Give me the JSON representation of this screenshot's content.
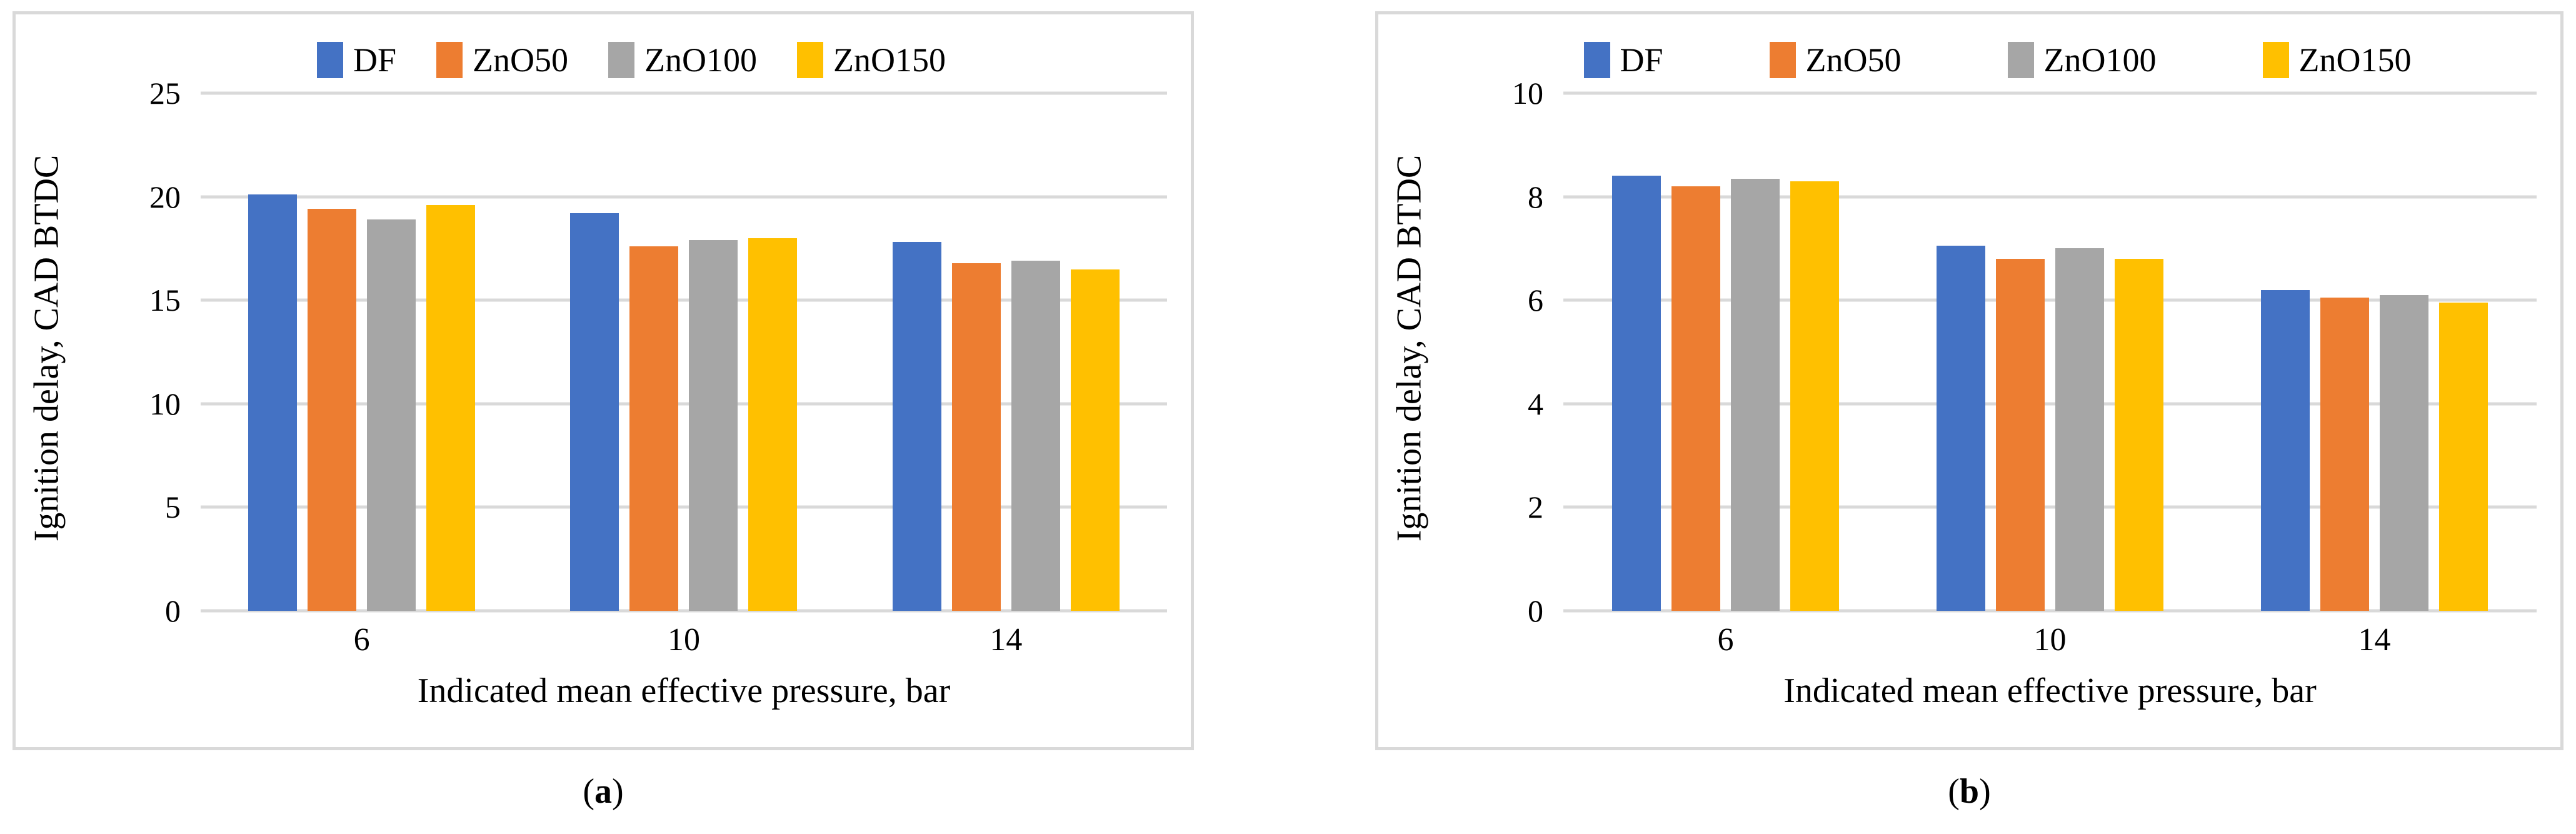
{
  "figure": {
    "captions": [
      {
        "pre": "(",
        "letter": "a",
        "post": ")"
      },
      {
        "pre": "(",
        "letter": "b",
        "post": ")"
      }
    ]
  },
  "colors": {
    "grid": "#d9d9d9",
    "panel_border": "#d9d9d9",
    "text": "#000000",
    "df": "#4472C4",
    "zno50": "#ED7D31",
    "zno100": "#A6A6A6",
    "zno150": "#FFC000"
  },
  "chart_data": [
    {
      "type": "bar",
      "panel": "a",
      "title": "",
      "ylabel": "Ignition delay, CAD BTDC",
      "xlabel": "Indicated mean effective pressure, bar",
      "categories": [
        "6",
        "10",
        "14"
      ],
      "yticks": [
        0,
        5,
        10,
        15,
        20,
        25
      ],
      "ylim": [
        0,
        25
      ],
      "grid": "horizontal-only",
      "legend_position": "top",
      "series": [
        {
          "name": "DF",
          "color": "#4472C4",
          "values": [
            20.1,
            19.2,
            17.8
          ]
        },
        {
          "name": "ZnO50",
          "color": "#ED7D31",
          "values": [
            19.4,
            17.6,
            16.8
          ]
        },
        {
          "name": "ZnO100",
          "color": "#A6A6A6",
          "values": [
            18.9,
            17.9,
            16.9
          ]
        },
        {
          "name": "ZnO150",
          "color": "#FFC000",
          "values": [
            19.6,
            18.0,
            16.5
          ]
        }
      ]
    },
    {
      "type": "bar",
      "panel": "b",
      "title": "",
      "ylabel": "Ignition delay, CAD BTDC",
      "xlabel": "Indicated mean effective pressure, bar",
      "categories": [
        "6",
        "10",
        "14"
      ],
      "yticks": [
        0,
        2,
        4,
        6,
        8,
        10
      ],
      "ylim": [
        0,
        10
      ],
      "grid": "horizontal-only",
      "legend_position": "top",
      "series": [
        {
          "name": "DF",
          "color": "#4472C4",
          "values": [
            8.4,
            7.05,
            6.2
          ]
        },
        {
          "name": "ZnO50",
          "color": "#ED7D31",
          "values": [
            8.2,
            6.8,
            6.05
          ]
        },
        {
          "name": "ZnO100",
          "color": "#A6A6A6",
          "values": [
            8.35,
            7.0,
            6.1
          ]
        },
        {
          "name": "ZnO150",
          "color": "#FFC000",
          "values": [
            8.3,
            6.8,
            5.95
          ]
        }
      ]
    }
  ]
}
